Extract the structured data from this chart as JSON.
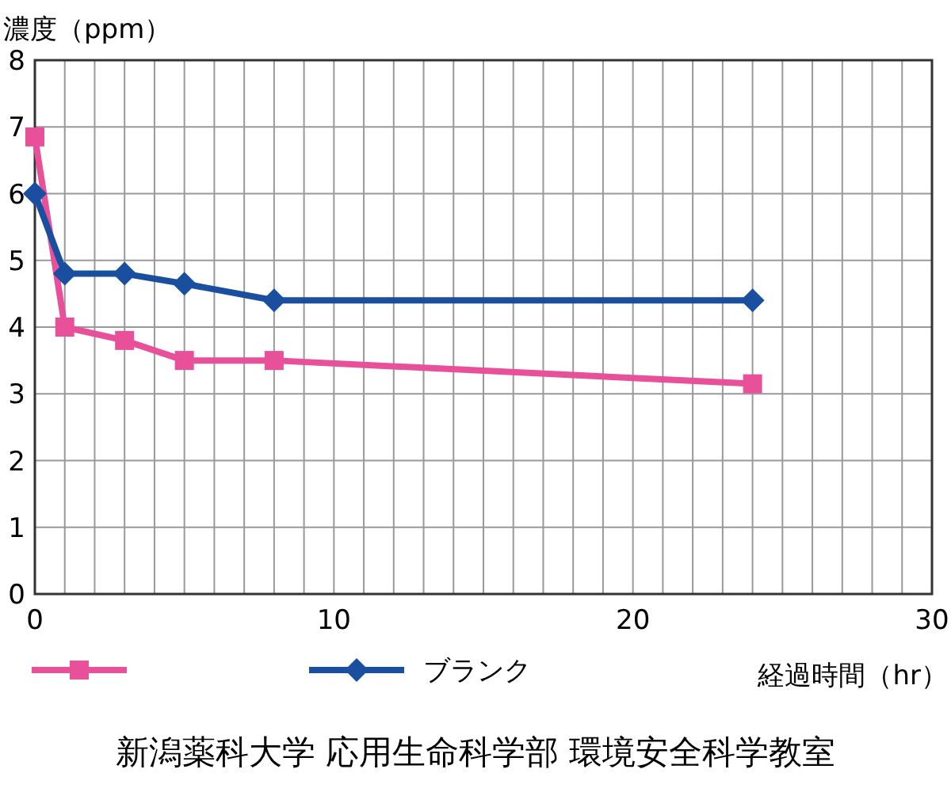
{
  "chart_data": {
    "type": "line",
    "ylabel": "濃度（ppm）",
    "xlabel": "経過時間（hr）",
    "annotations": [
      "新潟薬科大学 応用生命科学部 環境安全科学教室"
    ],
    "xlim": [
      0,
      30
    ],
    "ylim": [
      0,
      8
    ],
    "xticks": [
      0,
      {
        "value": 1,
        "label": null
      },
      {
        "value": 2,
        "label": null
      },
      {
        "value": 3,
        "label": null
      },
      {
        "value": 4,
        "label": null
      },
      {
        "value": 5,
        "label": null
      },
      {
        "value": 6,
        "label": null
      },
      {
        "value": 7,
        "label": null
      },
      {
        "value": 8,
        "label": null
      },
      {
        "value": 9,
        "label": null
      },
      10,
      {
        "value": 11,
        "label": null
      },
      {
        "value": 12,
        "label": null
      },
      {
        "value": 13,
        "label": null
      },
      {
        "value": 14,
        "label": null
      },
      {
        "value": 15,
        "label": null
      },
      {
        "value": 16,
        "label": null
      },
      {
        "value": 17,
        "label": null
      },
      {
        "value": 18,
        "label": null
      },
      {
        "value": 19,
        "label": null
      },
      20,
      {
        "value": 21,
        "label": null
      },
      {
        "value": 22,
        "label": null
      },
      {
        "value": 23,
        "label": null
      },
      {
        "value": 24,
        "label": null
      },
      {
        "value": 25,
        "label": null
      },
      {
        "value": 26,
        "label": null
      },
      {
        "value": 27,
        "label": null
      },
      {
        "value": 28,
        "label": null
      },
      {
        "value": 29,
        "label": null
      },
      30
    ],
    "yticks": [
      0,
      1,
      2,
      3,
      4,
      5,
      6,
      7,
      8
    ],
    "grid": true,
    "legend": "bottom left",
    "line_style": "solid",
    "series": [
      {
        "color": "#e8509a",
        "marker": "square",
        "x": [
          0,
          1,
          3,
          5,
          8,
          24
        ],
        "values": [
          6.85,
          4.0,
          3.8,
          3.5,
          3.5,
          3.15
        ]
      },
      {
        "name": "ブランク",
        "color": "#1a4fa0",
        "marker": "diamond",
        "x": [
          0,
          1,
          3,
          5,
          8,
          24
        ],
        "values": [
          6.0,
          4.8,
          4.8,
          4.65,
          4.4,
          4.4
        ]
      }
    ]
  }
}
